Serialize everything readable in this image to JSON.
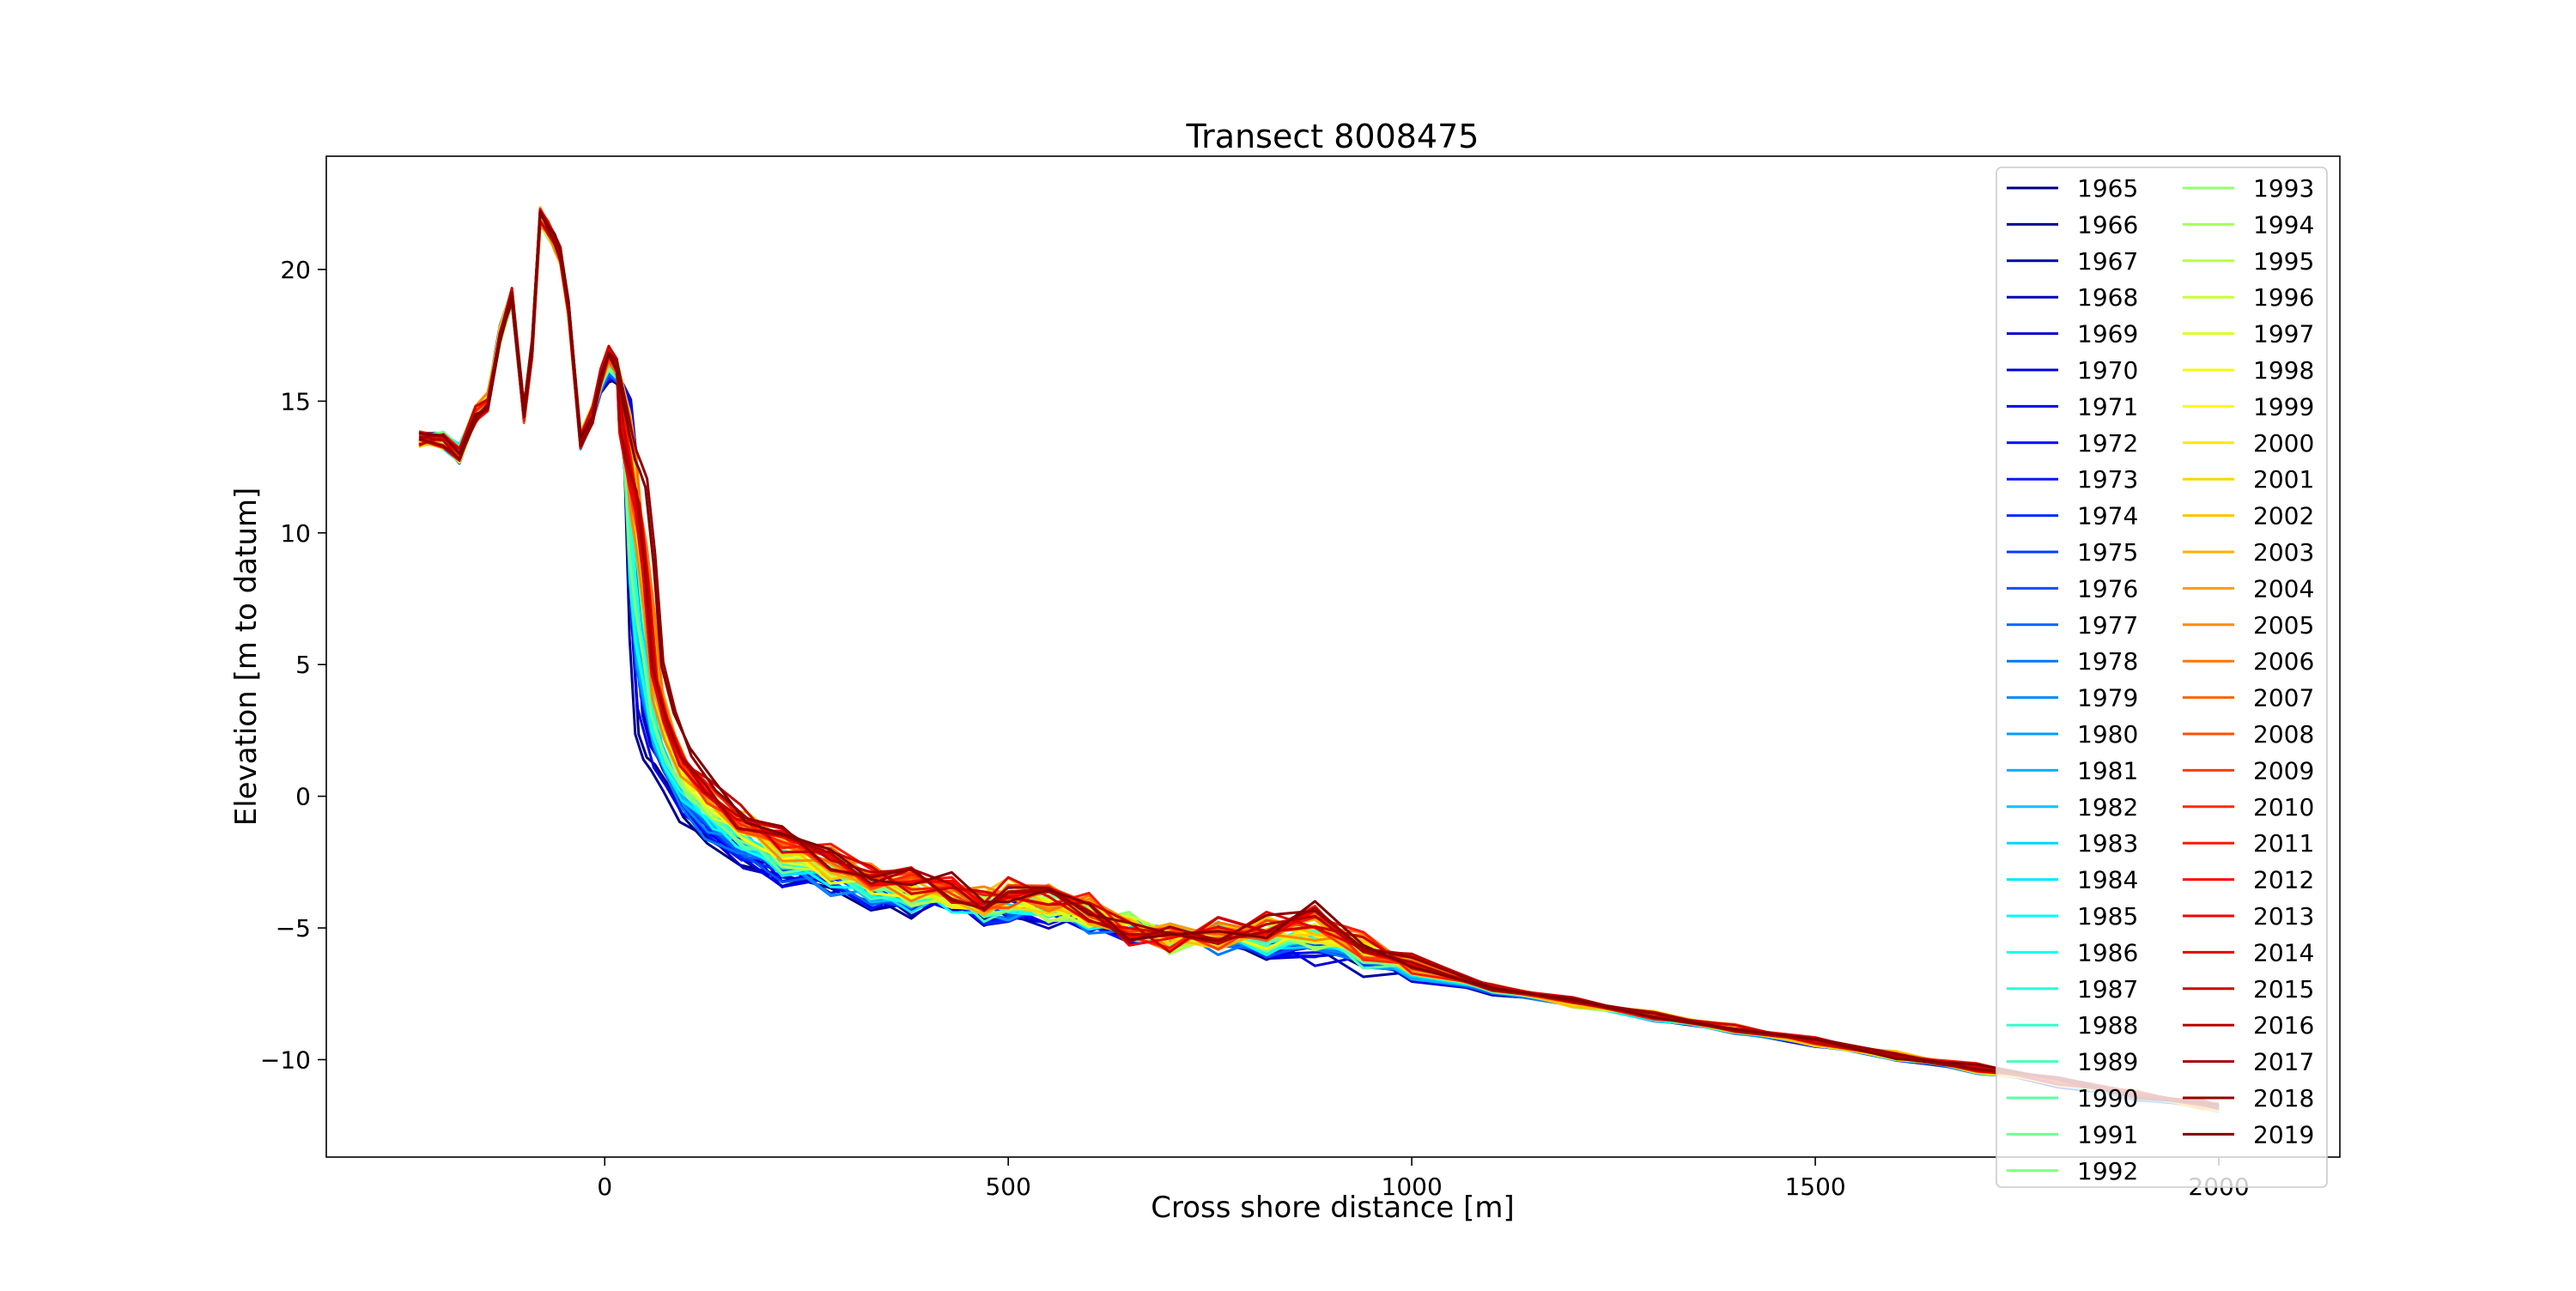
{
  "chart_data": {
    "type": "line",
    "title": "Transect 8008475",
    "xlabel": "Cross shore distance [m]",
    "ylabel": "Elevation [m to datum]",
    "xlim": [
      -345,
      2150
    ],
    "ylim": [
      -13.7,
      24.3
    ],
    "xticks": [
      0,
      500,
      1000,
      1500,
      2000
    ],
    "yticks": [
      -10,
      -5,
      0,
      5,
      10,
      15,
      20
    ],
    "grid": false,
    "legend_position": "right, two columns",
    "colormap": "jet",
    "first_year": 1965,
    "last_year": 2019,
    "series": [
      {
        "name": "1965"
      },
      {
        "name": "1966"
      },
      {
        "name": "1967"
      },
      {
        "name": "1968"
      },
      {
        "name": "1969"
      },
      {
        "name": "1970"
      },
      {
        "name": "1971"
      },
      {
        "name": "1972"
      },
      {
        "name": "1973"
      },
      {
        "name": "1974"
      },
      {
        "name": "1975"
      },
      {
        "name": "1976"
      },
      {
        "name": "1977"
      },
      {
        "name": "1978"
      },
      {
        "name": "1979"
      },
      {
        "name": "1980"
      },
      {
        "name": "1981"
      },
      {
        "name": "1982"
      },
      {
        "name": "1983"
      },
      {
        "name": "1984"
      },
      {
        "name": "1985"
      },
      {
        "name": "1986"
      },
      {
        "name": "1987"
      },
      {
        "name": "1988"
      },
      {
        "name": "1989"
      },
      {
        "name": "1990"
      },
      {
        "name": "1991"
      },
      {
        "name": "1992"
      },
      {
        "name": "1993"
      },
      {
        "name": "1994"
      },
      {
        "name": "1995"
      },
      {
        "name": "1996"
      },
      {
        "name": "1997"
      },
      {
        "name": "1998"
      },
      {
        "name": "1999"
      },
      {
        "name": "2000"
      },
      {
        "name": "2001"
      },
      {
        "name": "2002"
      },
      {
        "name": "2003"
      },
      {
        "name": "2004"
      },
      {
        "name": "2005"
      },
      {
        "name": "2006"
      },
      {
        "name": "2007"
      },
      {
        "name": "2008"
      },
      {
        "name": "2009"
      },
      {
        "name": "2010"
      },
      {
        "name": "2011"
      },
      {
        "name": "2012"
      },
      {
        "name": "2013"
      },
      {
        "name": "2014"
      },
      {
        "name": "2015"
      },
      {
        "name": "2016"
      },
      {
        "name": "2017"
      },
      {
        "name": "2018"
      },
      {
        "name": "2019"
      }
    ],
    "profile_early": {
      "x": [
        -230,
        -200,
        -180,
        -160,
        -145,
        -130,
        -115,
        -100,
        -90,
        -80,
        -70,
        -62,
        -55,
        -45,
        -30,
        -15,
        -5,
        5,
        15,
        25,
        32,
        38,
        45,
        55,
        65,
        80,
        100,
        130,
        170,
        220,
        280,
        330,
        380,
        430,
        470,
        500,
        550,
        600,
        650,
        700,
        760,
        820,
        880,
        940,
        1000,
        1100,
        1200,
        1300,
        1400,
        1500,
        1600,
        1700,
        1800,
        1900,
        1980,
        2000
      ],
      "y": [
        13.5,
        13.5,
        13.0,
        14.5,
        15.0,
        17.5,
        19.0,
        14.5,
        17.0,
        22.0,
        21.5,
        21.0,
        20.5,
        18.5,
        13.5,
        14.5,
        15.5,
        16.0,
        16.0,
        15.0,
        12.5,
        6.0,
        2.5,
        1.5,
        1.0,
        0.2,
        -1.0,
        -1.8,
        -2.3,
        -3.0,
        -3.5,
        -3.8,
        -4.2,
        -4.0,
        -4.5,
        -4.3,
        -4.5,
        -4.8,
        -5.0,
        -5.3,
        -5.5,
        -5.8,
        -6.0,
        -6.3,
        -6.7,
        -7.4,
        -7.9,
        -8.4,
        -8.9,
        -9.4,
        -9.9,
        -10.4,
        -10.9,
        -11.4,
        -11.8,
        -11.9
      ]
    },
    "profile_late": {
      "x": [
        -230,
        -200,
        -180,
        -160,
        -145,
        -130,
        -115,
        -100,
        -90,
        -80,
        -70,
        -62,
        -55,
        -45,
        -30,
        -15,
        -5,
        5,
        15,
        25,
        32,
        38,
        45,
        55,
        65,
        80,
        100,
        130,
        170,
        220,
        280,
        330,
        380,
        430,
        470,
        500,
        550,
        600,
        650,
        700,
        760,
        820,
        880,
        940,
        1000,
        1100,
        1200,
        1300,
        1400,
        1500,
        1600,
        1700,
        1800,
        1900,
        1980,
        2000
      ],
      "y": [
        13.5,
        13.5,
        13.0,
        14.5,
        15.0,
        17.5,
        19.0,
        14.5,
        17.0,
        22.0,
        21.5,
        21.0,
        20.5,
        18.5,
        13.5,
        14.5,
        16.0,
        17.0,
        16.5,
        14.0,
        13.0,
        12.5,
        12.0,
        9.0,
        5.0,
        3.0,
        1.5,
        0.5,
        -0.5,
        -1.5,
        -2.2,
        -2.8,
        -3.2,
        -3.5,
        -3.8,
        -3.5,
        -3.8,
        -4.2,
        -5.0,
        -5.5,
        -5.2,
        -4.8,
        -4.6,
        -5.5,
        -6.3,
        -7.2,
        -7.8,
        -8.3,
        -8.8,
        -9.3,
        -9.8,
        -10.3,
        -10.8,
        -11.3,
        -11.7,
        -11.8
      ]
    }
  }
}
